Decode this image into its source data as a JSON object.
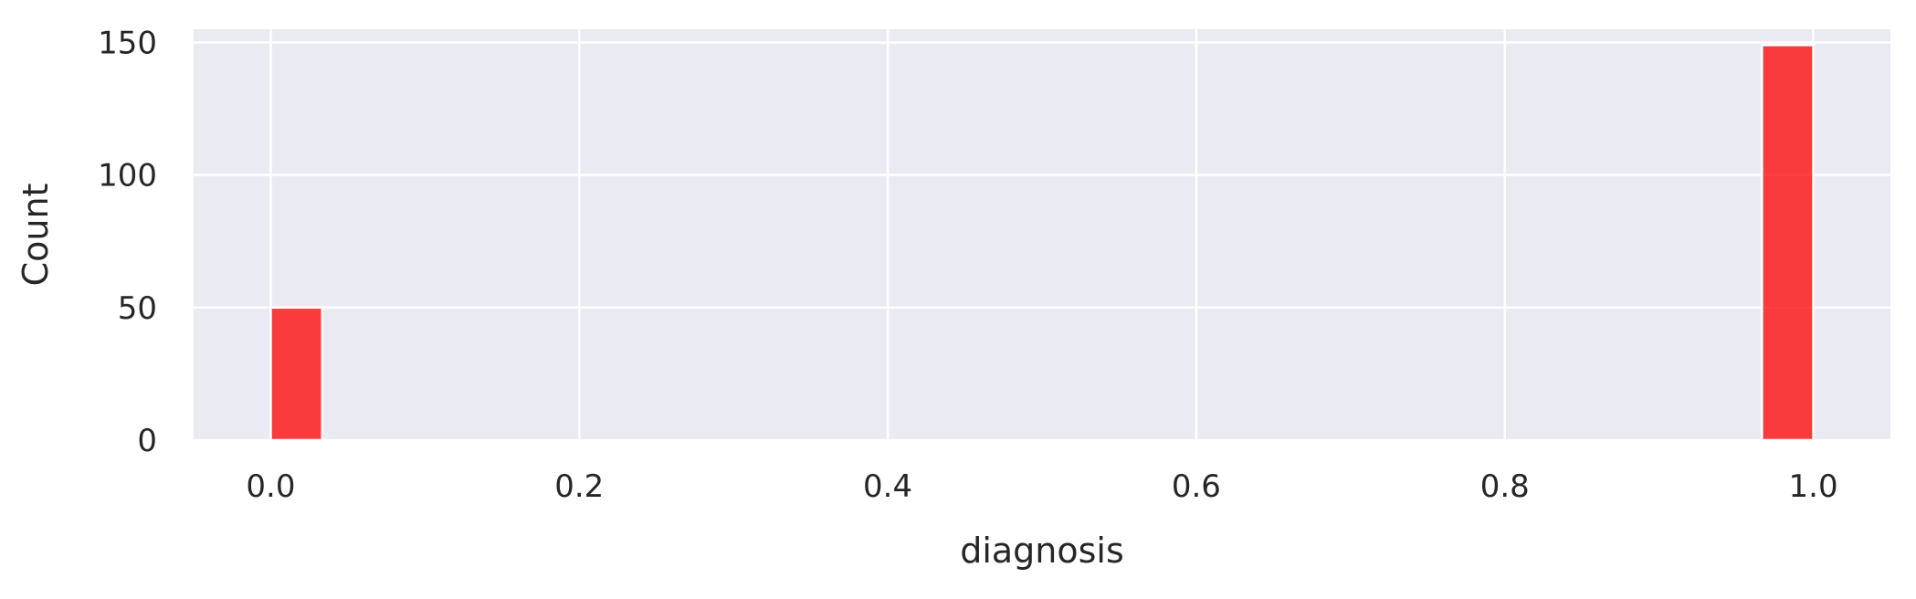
{
  "chart_data": {
    "type": "bar",
    "title": "",
    "xlabel": "diagnosis",
    "ylabel": "Count",
    "xlim": [
      -0.05,
      1.05
    ],
    "ylim": [
      0,
      155
    ],
    "x_ticks": [
      0.0,
      0.2,
      0.4,
      0.6,
      0.8,
      1.0
    ],
    "x_tick_labels": [
      "0.0",
      "0.2",
      "0.4",
      "0.6",
      "0.8",
      "1.0"
    ],
    "y_ticks": [
      0,
      50,
      100,
      150
    ],
    "y_tick_labels": [
      "0",
      "50",
      "100",
      "150"
    ],
    "grid": true,
    "bin_width": 0.0333,
    "bars": [
      {
        "x_start": 0.0,
        "x_end": 0.0333,
        "value": 50
      },
      {
        "x_start": 0.9667,
        "x_end": 1.0,
        "value": 149
      }
    ],
    "colors": {
      "bar": "#ff0000",
      "plot_background": "#eaeaf2",
      "grid": "#ffffff",
      "text": "#262626"
    }
  }
}
